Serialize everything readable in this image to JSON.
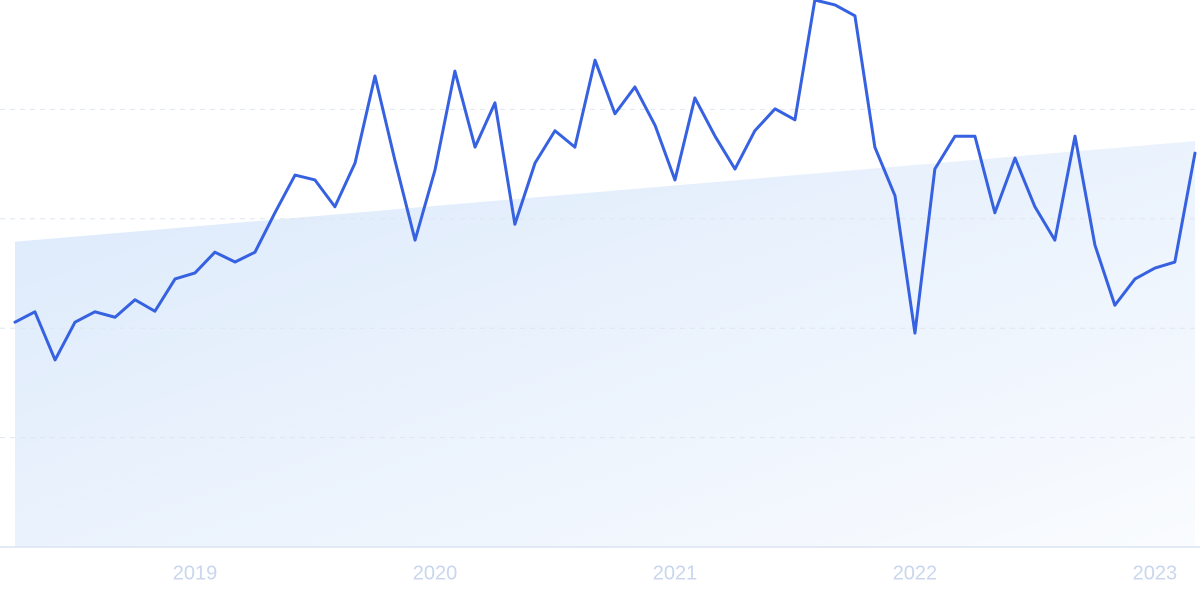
{
  "chart_data": {
    "type": "line",
    "x": [
      2018.25,
      2018.333,
      2018.417,
      2018.5,
      2018.583,
      2018.667,
      2018.75,
      2018.833,
      2018.917,
      2019,
      2019.083,
      2019.167,
      2019.25,
      2019.333,
      2019.417,
      2019.5,
      2019.583,
      2019.667,
      2019.75,
      2019.833,
      2019.917,
      2020,
      2020.083,
      2020.167,
      2020.25,
      2020.333,
      2020.417,
      2020.5,
      2020.583,
      2020.667,
      2020.75,
      2020.833,
      2020.917,
      2021,
      2021.083,
      2021.167,
      2021.25,
      2021.333,
      2021.417,
      2021.5,
      2021.583,
      2021.667,
      2021.75,
      2021.833,
      2021.917,
      2022,
      2022.083,
      2022.167,
      2022.25,
      2022.333,
      2022.417,
      2022.5,
      2022.583,
      2022.667,
      2022.75,
      2022.833,
      2022.917,
      2023,
      2023.083,
      2023.167
    ],
    "values": [
      41.1,
      43.0,
      34.2,
      41.1,
      43.0,
      42.0,
      45.2,
      43.1,
      49.0,
      50.1,
      53.9,
      52.1,
      53.9,
      61.1,
      68.0,
      67.1,
      62.2,
      70.2,
      86.1,
      70.7,
      56.1,
      68.9,
      87.0,
      73.1,
      81.2,
      59.0,
      70.2,
      76.1,
      73.1,
      89.0,
      79.2,
      84.1,
      77.1,
      67.1,
      82.1,
      75.1,
      69.1,
      76.1,
      80.1,
      78.1,
      100,
      99.1,
      97.1,
      73.1,
      64.2,
      39.1,
      69.1,
      75.1,
      75.1,
      61.1,
      71.1,
      62.2,
      56.1,
      75.1,
      55.2,
      44.2,
      49.0,
      51.0,
      52.1,
      72.0
    ],
    "color": "#3661e0",
    "trend": {
      "x": [
        2018.25,
        2023.167
      ],
      "values": [
        55.8,
        74.2
      ],
      "color": "#dbe9fb"
    },
    "xlim": [
      2018.25,
      2023.167
    ],
    "xticks": [
      2019,
      2020,
      2021,
      2022,
      2023
    ],
    "ylim": [
      0,
      100
    ],
    "yticks": [
      20,
      40,
      60,
      80
    ],
    "grid": true
  }
}
